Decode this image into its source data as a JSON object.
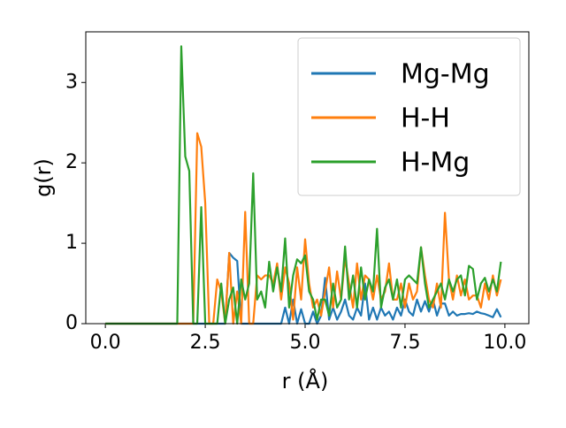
{
  "chart_data": {
    "type": "line",
    "xlabel": "r (Å)",
    "ylabel": "g(r)",
    "x": [
      0,
      0.1,
      0.2,
      0.3,
      0.4,
      0.5,
      0.6,
      0.7,
      0.8,
      0.9,
      1,
      1.1,
      1.2,
      1.3,
      1.4,
      1.5,
      1.6,
      1.7,
      1.8,
      1.9,
      2,
      2.1,
      2.2,
      2.3,
      2.4,
      2.5,
      2.6,
      2.7,
      2.8,
      2.9,
      3,
      3.1,
      3.2,
      3.3,
      3.4,
      3.5,
      3.6,
      3.7,
      3.8,
      3.9,
      4,
      4.1,
      4.2,
      4.3,
      4.4,
      4.5,
      4.6,
      4.7,
      4.8,
      4.9,
      5,
      5.1,
      5.2,
      5.3,
      5.4,
      5.5,
      5.6,
      5.7,
      5.8,
      5.9,
      6,
      6.1,
      6.2,
      6.3,
      6.4,
      6.5,
      6.6,
      6.7,
      6.8,
      6.9,
      7,
      7.1,
      7.2,
      7.3,
      7.4,
      7.5,
      7.6,
      7.7,
      7.8,
      7.9,
      8,
      8.1,
      8.2,
      8.3,
      8.4,
      8.5,
      8.6,
      8.7,
      8.8,
      8.9,
      9,
      9.1,
      9.2,
      9.3,
      9.4,
      9.5,
      9.6,
      9.7,
      9.8,
      9.9
    ],
    "series": [
      {
        "name": "Mg-Mg",
        "color": "#1f77b4",
        "values": [
          0,
          0,
          0,
          0,
          0,
          0,
          0,
          0,
          0,
          0,
          0,
          0,
          0,
          0,
          0,
          0,
          0,
          0,
          0,
          0,
          0,
          0,
          0,
          0,
          0,
          0,
          0,
          0,
          0,
          0,
          0,
          0.88,
          0.82,
          0.78,
          0,
          0,
          0,
          0,
          0,
          0,
          0,
          0,
          0,
          0,
          0,
          0.2,
          0,
          0.3,
          0,
          0.18,
          0,
          0,
          0.15,
          0,
          0.1,
          0.57,
          0.05,
          0.2,
          0.05,
          0.15,
          0.3,
          0.1,
          0.05,
          0.2,
          0.1,
          0.5,
          0.05,
          0.2,
          0.05,
          0.2,
          0.1,
          0.15,
          0.05,
          0.2,
          0.1,
          0.3,
          0.15,
          0.1,
          0.3,
          0.15,
          0.28,
          0.15,
          0.3,
          0.1,
          0.25,
          0.25,
          0.1,
          0.15,
          0.1,
          0.12,
          0.12,
          0.13,
          0.12,
          0.15,
          0.13,
          0.12,
          0.1,
          0.08,
          0.18,
          0.08
        ]
      },
      {
        "name": "H-H",
        "color": "#ff7f0e",
        "values": [
          0,
          0,
          0,
          0,
          0,
          0,
          0,
          0,
          0,
          0,
          0,
          0,
          0,
          0,
          0,
          0,
          0,
          0,
          0,
          0,
          0,
          0,
          0,
          2.37,
          2.2,
          1.5,
          0,
          0,
          0.55,
          0.4,
          0,
          0.88,
          0,
          0.4,
          0,
          1.39,
          0,
          0,
          0.6,
          0.55,
          0.6,
          0.6,
          0.5,
          0.75,
          0.3,
          0.7,
          0.5,
          0.05,
          0.7,
          0.3,
          1.05,
          0.5,
          0.2,
          0.3,
          0.1,
          0.4,
          0.7,
          0.2,
          0.65,
          0.3,
          0.82,
          0.5,
          0.2,
          0.75,
          0.3,
          0.6,
          0.55,
          0.3,
          0.6,
          0.3,
          0.4,
          0.75,
          0.3,
          0.3,
          0.5,
          0.2,
          0.5,
          0.3,
          0.4,
          0.95,
          0.6,
          0.3,
          0.2,
          0.5,
          0.2,
          1.38,
          0.55,
          0.3,
          0.6,
          0.35,
          0.55,
          0.3,
          0.35,
          0.35,
          0.2,
          0.5,
          0.3,
          0.6,
          0.35,
          0.55
        ]
      },
      {
        "name": "H-Mg",
        "color": "#2ca02c",
        "values": [
          0,
          0,
          0,
          0,
          0,
          0,
          0,
          0,
          0,
          0,
          0,
          0,
          0,
          0,
          0,
          0,
          0,
          0,
          0,
          3.45,
          2.08,
          1.9,
          0,
          0,
          1.45,
          0,
          0,
          0,
          0,
          0.5,
          0,
          0.3,
          0.45,
          0,
          0.55,
          0.3,
          0.5,
          1.87,
          0.3,
          0.4,
          0.2,
          0.77,
          0.4,
          0.7,
          0.4,
          1.06,
          0.2,
          0.6,
          0.8,
          0.75,
          0.85,
          0.4,
          0.3,
          0.05,
          0.3,
          0.3,
          0.1,
          0.5,
          0.2,
          0.3,
          0.96,
          0.3,
          0.6,
          0.2,
          0.7,
          0.3,
          0.55,
          0.4,
          1.18,
          0.2,
          0.45,
          0.55,
          0.3,
          0.55,
          0.2,
          0.55,
          0.6,
          0.55,
          0.5,
          0.95,
          0.5,
          0.2,
          0.3,
          0.4,
          0.5,
          0.3,
          0.55,
          0.4,
          0.55,
          0.6,
          0.35,
          0.72,
          0.68,
          0.3,
          0.5,
          0.57,
          0.4,
          0.55,
          0.4,
          0.77
        ]
      }
    ],
    "xlim": [
      -0.49,
      10.6
    ],
    "ylim": [
      0,
      3.63
    ],
    "xticks": [
      {
        "value": 0,
        "label": "0.0"
      },
      2.5,
      {
        "value": 5,
        "label": "5.0"
      },
      7.5,
      {
        "value": 10,
        "label": "10.0"
      }
    ],
    "yticks": [
      0,
      1,
      2,
      3
    ],
    "grid": false,
    "legend": "upper right"
  }
}
